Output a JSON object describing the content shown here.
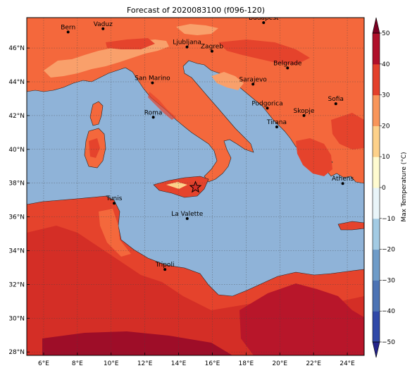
{
  "title": "Forecast of 2020083100 (f096-120)",
  "map": {
    "lon_range": [
      5,
      25
    ],
    "lat_range": [
      27.8,
      47.8
    ],
    "lon_ticks": [
      "6°E",
      "8°E",
      "10°E",
      "12°E",
      "14°E",
      "16°E",
      "18°E",
      "20°E",
      "22°E",
      "24°E"
    ],
    "lat_ticks": [
      "28°N",
      "30°N",
      "32°N",
      "34°N",
      "36°N",
      "38°N",
      "40°N",
      "42°N",
      "44°N",
      "46°N"
    ],
    "grid": true,
    "sea_color": "#8fb3d8",
    "cities": [
      {
        "name": "Bern",
        "lon": 7.45,
        "lat": 46.95
      },
      {
        "name": "Vaduz",
        "lon": 9.52,
        "lat": 47.14
      },
      {
        "name": "Budapest",
        "lon": 19.04,
        "lat": 47.5
      },
      {
        "name": "Ljubljana",
        "lon": 14.5,
        "lat": 46.06
      },
      {
        "name": "Zagreb",
        "lon": 15.98,
        "lat": 45.81
      },
      {
        "name": "Belgrade",
        "lon": 20.46,
        "lat": 44.82
      },
      {
        "name": "San Marino",
        "lon": 12.45,
        "lat": 43.94
      },
      {
        "name": "Sarajevo",
        "lon": 18.41,
        "lat": 43.86
      },
      {
        "name": "Sofia",
        "lon": 23.32,
        "lat": 42.7
      },
      {
        "name": "Podgorica",
        "lon": 19.26,
        "lat": 42.44
      },
      {
        "name": "Skopje",
        "lon": 21.43,
        "lat": 42.0
      },
      {
        "name": "Roma",
        "lon": 12.5,
        "lat": 41.9
      },
      {
        "name": "Tirana",
        "lon": 19.82,
        "lat": 41.33
      },
      {
        "name": "Athens",
        "lon": 23.73,
        "lat": 37.98
      },
      {
        "name": "Tunis",
        "lon": 10.18,
        "lat": 36.81
      },
      {
        "name": "La Valette",
        "lon": 14.51,
        "lat": 35.9
      },
      {
        "name": "Tripoli",
        "lon": 13.19,
        "lat": 32.89
      }
    ],
    "marker": {
      "type": "star",
      "lon": 15.0,
      "lat": 37.75
    }
  },
  "colorbar": {
    "label": "Max Temperature (°C)",
    "min": -50,
    "max": 50,
    "step": 10,
    "tick_labels": [
      "−50",
      "−40",
      "−30",
      "−20",
      "−10",
      "0",
      "10",
      "20",
      "30",
      "40",
      "50"
    ],
    "colors": [
      "#23238a",
      "#3048a8",
      "#4d73b4",
      "#6f9cc8",
      "#a3cbe3",
      "#e9f5f9",
      "#fffbd0",
      "#fdd18a",
      "#f8955a",
      "#e3402b",
      "#b0102a",
      "#7a0022"
    ]
  },
  "legend_colors": {
    "land_20_30": "#f4683c",
    "land_25_30": "#ef7242",
    "land_30_35": "#e5432c",
    "land_35_40": "#d42e26",
    "land_40_45": "#b8162a",
    "land_15_20": "#f9a06b"
  }
}
